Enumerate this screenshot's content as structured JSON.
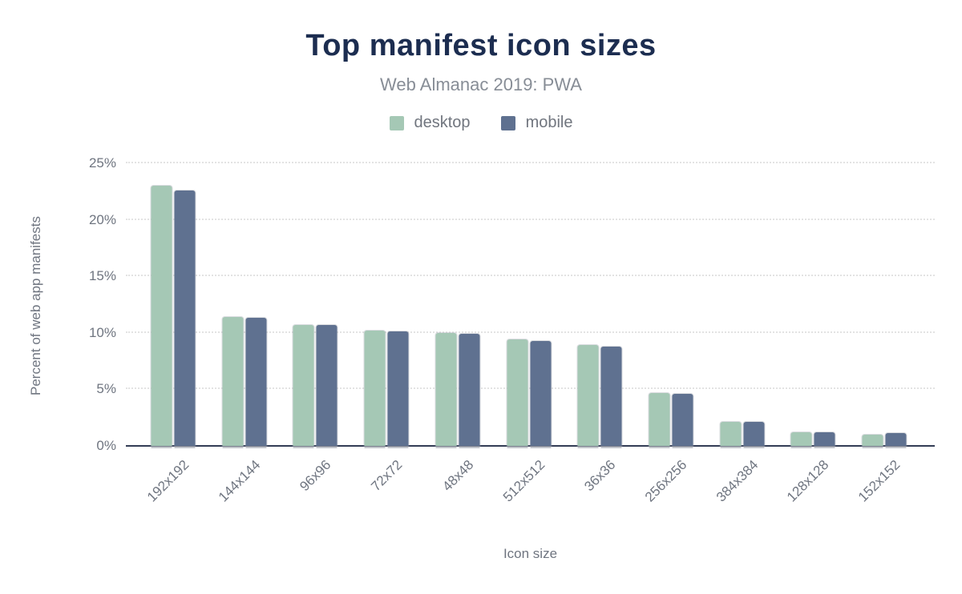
{
  "header": {
    "title": "Top manifest icon sizes",
    "subtitle": "Web Almanac 2019: PWA"
  },
  "chart_data": {
    "type": "bar",
    "title": "Top manifest icon sizes",
    "subtitle": "Web Almanac 2019: PWA",
    "categories": [
      "192x192",
      "144x144",
      "96x96",
      "72x72",
      "48x48",
      "512x512",
      "36x36",
      "256x256",
      "384x384",
      "128x128",
      "152x152"
    ],
    "series": [
      {
        "name": "desktop",
        "color": "#a5c8b5",
        "values": [
          23.0,
          11.4,
          10.7,
          10.2,
          10.0,
          9.4,
          8.9,
          4.7,
          2.1,
          1.2,
          1.0
        ]
      },
      {
        "name": "mobile",
        "color": "#5f7190",
        "values": [
          22.6,
          11.3,
          10.7,
          10.1,
          9.9,
          9.3,
          8.8,
          4.6,
          2.1,
          1.2,
          1.1
        ]
      }
    ],
    "xlabel": "Icon size",
    "ylabel": "Percent of web app manifests",
    "ylim": [
      0,
      25
    ],
    "yticks": [
      0,
      5,
      10,
      15,
      20,
      25
    ],
    "ytick_suffix": "%",
    "grid": "horizontal-dotted",
    "legend_position": "top-center"
  },
  "colors": {
    "title": "#1c2d50",
    "subtitle": "#878d96",
    "axis_text": "#6f7580",
    "gridline": "#e3e3e3",
    "baseline": "#333d55",
    "background": "#ffffff",
    "desktop_series": "#a5c8b5",
    "mobile_series": "#5f7190"
  }
}
